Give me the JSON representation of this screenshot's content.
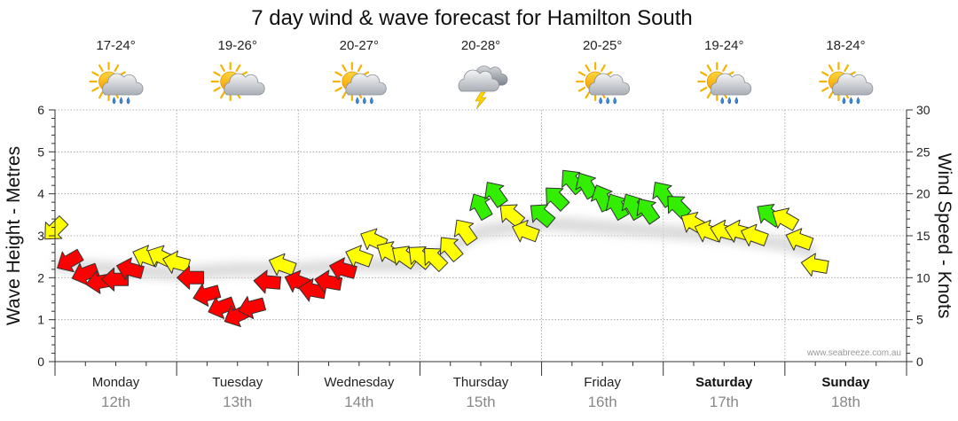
{
  "chart_data": {
    "type": "line",
    "title": "7 day wind & wave forecast for Hamilton South",
    "ylabel_left": "Wave Height - Metres",
    "ylabel_right": "Wind Speed - Knots",
    "ylim_left": [
      0,
      6
    ],
    "ylim_right": [
      0,
      30
    ],
    "yticks_left": [
      "0",
      "1",
      "2",
      "3",
      "4",
      "5",
      "6"
    ],
    "yticks_right": [
      "0",
      "5",
      "10",
      "15",
      "20",
      "25",
      "30"
    ],
    "days": [
      {
        "name": "Monday",
        "date": "12th",
        "temp": "17-24°",
        "weather": "partly-cloudy-showers",
        "bold": false
      },
      {
        "name": "Tuesday",
        "date": "13th",
        "temp": "19-26°",
        "weather": "partly-cloudy",
        "bold": false
      },
      {
        "name": "Wednesday",
        "date": "14th",
        "temp": "20-27°",
        "weather": "partly-cloudy-showers",
        "bold": false
      },
      {
        "name": "Thursday",
        "date": "15th",
        "temp": "20-28°",
        "weather": "thunderstorm",
        "bold": false
      },
      {
        "name": "Friday",
        "date": "16th",
        "temp": "20-25°",
        "weather": "partly-cloudy-showers",
        "bold": false
      },
      {
        "name": "Saturday",
        "date": "17th",
        "temp": "19-24°",
        "weather": "partly-cloudy-showers",
        "bold": true
      },
      {
        "name": "Sunday",
        "date": "18th",
        "temp": "18-24°",
        "weather": "partly-cloudy-showers",
        "bold": true
      }
    ],
    "wind_series": {
      "name": "Wind Speed (knots) with direction",
      "points": [
        {
          "t": 0.0,
          "kt": 15.8,
          "dir": 135,
          "band": "medium"
        },
        {
          "t": 0.12,
          "kt": 12.0,
          "dir": 150,
          "band": "strong"
        },
        {
          "t": 0.25,
          "kt": 10.5,
          "dir": 160,
          "band": "strong"
        },
        {
          "t": 0.37,
          "kt": 9.5,
          "dir": 170,
          "band": "strong"
        },
        {
          "t": 0.5,
          "kt": 9.8,
          "dir": 180,
          "band": "strong"
        },
        {
          "t": 0.62,
          "kt": 11.0,
          "dir": 195,
          "band": "strong"
        },
        {
          "t": 0.75,
          "kt": 12.5,
          "dir": 200,
          "band": "medium"
        },
        {
          "t": 0.87,
          "kt": 12.5,
          "dir": 205,
          "band": "medium"
        },
        {
          "t": 1.0,
          "kt": 11.8,
          "dir": 195,
          "band": "medium"
        },
        {
          "t": 1.12,
          "kt": 10.0,
          "dir": 180,
          "band": "strong"
        },
        {
          "t": 1.25,
          "kt": 8.0,
          "dir": 165,
          "band": "strong"
        },
        {
          "t": 1.37,
          "kt": 6.5,
          "dir": 160,
          "band": "strong"
        },
        {
          "t": 1.5,
          "kt": 5.5,
          "dir": 155,
          "band": "strong"
        },
        {
          "t": 1.62,
          "kt": 6.5,
          "dir": 165,
          "band": "strong"
        },
        {
          "t": 1.75,
          "kt": 9.5,
          "dir": 185,
          "band": "strong"
        },
        {
          "t": 1.87,
          "kt": 11.5,
          "dir": 200,
          "band": "medium"
        },
        {
          "t": 2.0,
          "kt": 9.5,
          "dir": 200,
          "band": "strong"
        },
        {
          "t": 2.12,
          "kt": 8.5,
          "dir": 190,
          "band": "strong"
        },
        {
          "t": 2.25,
          "kt": 9.5,
          "dir": 190,
          "band": "strong"
        },
        {
          "t": 2.37,
          "kt": 11.0,
          "dir": 195,
          "band": "strong"
        },
        {
          "t": 2.5,
          "kt": 12.5,
          "dir": 200,
          "band": "medium"
        },
        {
          "t": 2.62,
          "kt": 14.5,
          "dir": 205,
          "band": "medium"
        },
        {
          "t": 2.75,
          "kt": 13.0,
          "dir": 210,
          "band": "medium"
        },
        {
          "t": 2.87,
          "kt": 12.5,
          "dir": 215,
          "band": "medium"
        },
        {
          "t": 3.0,
          "kt": 12.5,
          "dir": 220,
          "band": "medium"
        },
        {
          "t": 3.12,
          "kt": 12.3,
          "dir": 225,
          "band": "medium"
        },
        {
          "t": 3.25,
          "kt": 13.5,
          "dir": 230,
          "band": "medium"
        },
        {
          "t": 3.37,
          "kt": 15.5,
          "dir": 235,
          "band": "medium"
        },
        {
          "t": 3.5,
          "kt": 18.5,
          "dir": 240,
          "band": "light"
        },
        {
          "t": 3.62,
          "kt": 20.0,
          "dir": 235,
          "band": "light"
        },
        {
          "t": 3.75,
          "kt": 17.5,
          "dir": 220,
          "band": "medium"
        },
        {
          "t": 3.87,
          "kt": 15.5,
          "dir": 200,
          "band": "medium"
        },
        {
          "t": 4.0,
          "kt": 17.5,
          "dir": 220,
          "band": "light"
        },
        {
          "t": 4.12,
          "kt": 19.5,
          "dir": 225,
          "band": "light"
        },
        {
          "t": 4.25,
          "kt": 21.5,
          "dir": 230,
          "band": "light"
        },
        {
          "t": 4.37,
          "kt": 21.0,
          "dir": 240,
          "band": "light"
        },
        {
          "t": 4.5,
          "kt": 19.5,
          "dir": 245,
          "band": "light"
        },
        {
          "t": 4.62,
          "kt": 18.5,
          "dir": 240,
          "band": "light"
        },
        {
          "t": 4.75,
          "kt": 18.5,
          "dir": 240,
          "band": "light"
        },
        {
          "t": 4.87,
          "kt": 18.0,
          "dir": 235,
          "band": "light"
        },
        {
          "t": 5.0,
          "kt": 20.0,
          "dir": 235,
          "band": "light"
        },
        {
          "t": 5.12,
          "kt": 18.5,
          "dir": 225,
          "band": "light"
        },
        {
          "t": 5.25,
          "kt": 16.5,
          "dir": 210,
          "band": "medium"
        },
        {
          "t": 5.37,
          "kt": 15.5,
          "dir": 200,
          "band": "medium"
        },
        {
          "t": 5.5,
          "kt": 15.5,
          "dir": 195,
          "band": "medium"
        },
        {
          "t": 5.62,
          "kt": 15.5,
          "dir": 195,
          "band": "medium"
        },
        {
          "t": 5.75,
          "kt": 15.0,
          "dir": 200,
          "band": "medium"
        },
        {
          "t": 5.87,
          "kt": 17.5,
          "dir": 215,
          "band": "light"
        },
        {
          "t": 6.0,
          "kt": 17.0,
          "dir": 210,
          "band": "medium"
        },
        {
          "t": 6.12,
          "kt": 14.5,
          "dir": 200,
          "band": "medium"
        },
        {
          "t": 6.25,
          "kt": 11.5,
          "dir": 190,
          "band": "medium"
        }
      ]
    },
    "wave_series": {
      "name": "Wave Height (m)",
      "points": [
        {
          "t": 0.0,
          "m": 2.6
        },
        {
          "t": 0.5,
          "m": 2.5
        },
        {
          "t": 1.0,
          "m": 2.4
        },
        {
          "t": 1.5,
          "m": 2.5
        },
        {
          "t": 2.0,
          "m": 2.5
        },
        {
          "t": 2.5,
          "m": 2.6
        },
        {
          "t": 3.0,
          "m": 2.6
        },
        {
          "t": 3.5,
          "m": 3.4
        },
        {
          "t": 4.0,
          "m": 3.6
        },
        {
          "t": 4.5,
          "m": 3.5
        },
        {
          "t": 5.0,
          "m": 3.4
        },
        {
          "t": 5.5,
          "m": 3.3
        },
        {
          "t": 6.0,
          "m": 3.1
        },
        {
          "t": 6.25,
          "m": 2.9
        }
      ]
    },
    "colors": {
      "light": "#33ee00",
      "medium": "#ffff00",
      "strong": "#ff0000",
      "arrow_stroke": "#333333",
      "grid": "#999999",
      "shadow": "#d8d8d8"
    },
    "credit": "www.seabreeze.com.au"
  }
}
